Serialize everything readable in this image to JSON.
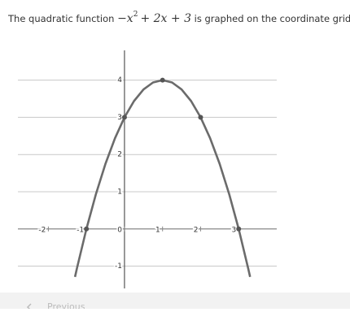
{
  "prompt": {
    "before": "The quadratic function",
    "math_base": "−x",
    "math_exponent": "2",
    "math_rest": "+ 2x + 3",
    "after": "is graphed on the coordinate grid."
  },
  "nav": {
    "previous": "Previous"
  },
  "chart_data": {
    "type": "line",
    "x": [
      -1.3,
      -1.25,
      -1,
      -0.75,
      -0.5,
      -0.25,
      0,
      0.25,
      0.5,
      0.75,
      1,
      1.25,
      1.5,
      1.75,
      2,
      2.25,
      2.5,
      2.75,
      3,
      3.25,
      3.3
    ],
    "series": [
      {
        "color": "#6b6b6b",
        "values": [
          -1.29,
          -1.0625,
          0,
          0.9375,
          1.75,
          2.4375,
          3,
          3.4375,
          3.75,
          3.9375,
          4,
          3.9375,
          3.75,
          3.4375,
          3,
          2.4375,
          1.75,
          0.9375,
          0,
          -1.0625,
          -1.29
        ]
      }
    ],
    "points": {
      "x": [
        -1,
        0,
        1,
        2,
        3
      ],
      "values": [
        0,
        3,
        4,
        3,
        0
      ],
      "color": "#555555"
    },
    "xlim": [
      -2.8,
      4
    ],
    "ylim": [
      -1.6,
      4.8
    ],
    "xticks": [
      -2,
      -1,
      0,
      1,
      2,
      3
    ],
    "yticks": [
      -1,
      1,
      2,
      3,
      4
    ],
    "grid": true
  }
}
